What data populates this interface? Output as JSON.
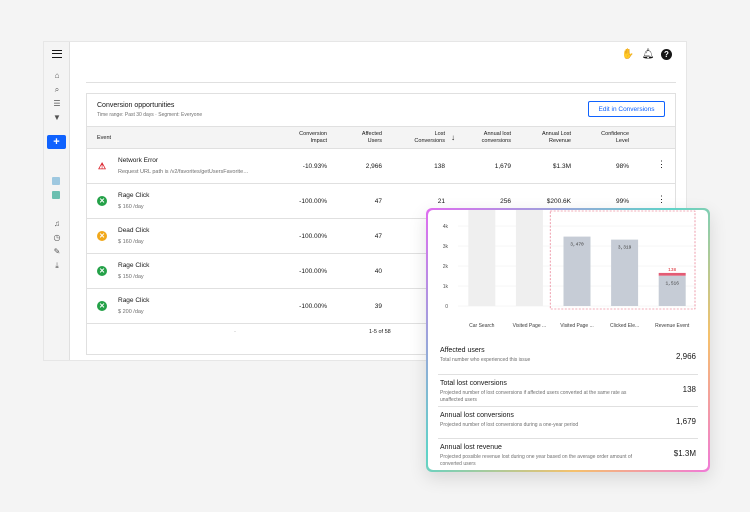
{
  "header": {
    "icons": [
      "hand-icon",
      "bell-icon",
      "help-icon"
    ]
  },
  "sidebar": {
    "icons": [
      "home-icon",
      "search-icon",
      "list-icon",
      "filter-icon",
      "add-icon",
      "notification-icon",
      "history-icon",
      "notes-icon",
      "download-icon"
    ]
  },
  "panel": {
    "title": "Conversion opportunities",
    "subtitle": "Time range: Past 30 days · Segment: Everyone",
    "edit_button": "Edit in Conversions",
    "columns": {
      "event": "Event",
      "impact": [
        "Conversion",
        "Impact"
      ],
      "affected": [
        "Affected",
        "Users"
      ],
      "lost": [
        "Lost",
        "Conversions"
      ],
      "annual_lost": [
        "Annual lost",
        "conversions"
      ],
      "annual_revenue": [
        "Annual Lost",
        "Revenue"
      ],
      "confidence": [
        "Confidence",
        "Level"
      ]
    },
    "rows": [
      {
        "name": "Network Error",
        "sub": "Request URL path is /v2/favorites/getUsersFavorite…",
        "impact": "-10.93%",
        "affected": "2,966",
        "lost": "138",
        "annual_lost": "1,679",
        "revenue": "$1.3M",
        "confidence": "98%",
        "icon": "error-icon"
      },
      {
        "name": "Rage Click",
        "sub": "$ 160 /day",
        "impact": "-100.00%",
        "affected": "47",
        "lost": "21",
        "annual_lost": "256",
        "revenue": "$200.6K",
        "confidence": "99%",
        "icon": "rage-face-icon"
      },
      {
        "name": "Dead Click",
        "sub": "$ 160 /day",
        "impact": "-100.00%",
        "affected": "47",
        "icon": "dead-face-icon"
      },
      {
        "name": "Rage Click",
        "sub": "$ 150 /day",
        "impact": "-100.00%",
        "affected": "40",
        "icon": "rage-face-icon"
      },
      {
        "name": "Rage Click",
        "sub": "$ 200 /day",
        "impact": "-100.00%",
        "affected": "39",
        "icon": "rage-face-icon"
      }
    ],
    "pagination": {
      "dot": "·",
      "label": "1-5 of 58"
    }
  },
  "chart_data": {
    "type": "bar",
    "categories": [
      "Car Search",
      "Visited Page ...",
      "Visited Page ...",
      "Clicked Ele...",
      "Revenue Event"
    ],
    "values": [
      null,
      null,
      3470,
      3319,
      1516
    ],
    "value_labels": [
      "",
      "",
      "3,470",
      "3,319",
      "1,516"
    ],
    "lost_label": "138",
    "yticks": [
      "4k",
      "3k",
      "2k",
      "1k",
      "0"
    ],
    "ylim": [
      0,
      4000
    ]
  },
  "stats": [
    {
      "title": "Affected users",
      "desc": "Total number who experienced this issue",
      "value": "2,966"
    },
    {
      "title": "Total lost conversions",
      "desc": "Projected number of lost conversions if affected users converted at the same rate as unaffected users",
      "value": "138"
    },
    {
      "title": "Annual lost conversions",
      "desc": "Projected number of lost conversions during a one-year period",
      "value": "1,679"
    },
    {
      "title": "Annual lost revenue",
      "desc": "Projected possible revenue lost during one year based on the average order amount of converted users",
      "value": "$1.3M"
    }
  ],
  "colors": {
    "accent": "#0f62fe",
    "error": "#da1e28",
    "rage": "#24a148",
    "dead": "#f1c21b",
    "bar": "#c6ccd6",
    "lost": "#e35b74"
  }
}
